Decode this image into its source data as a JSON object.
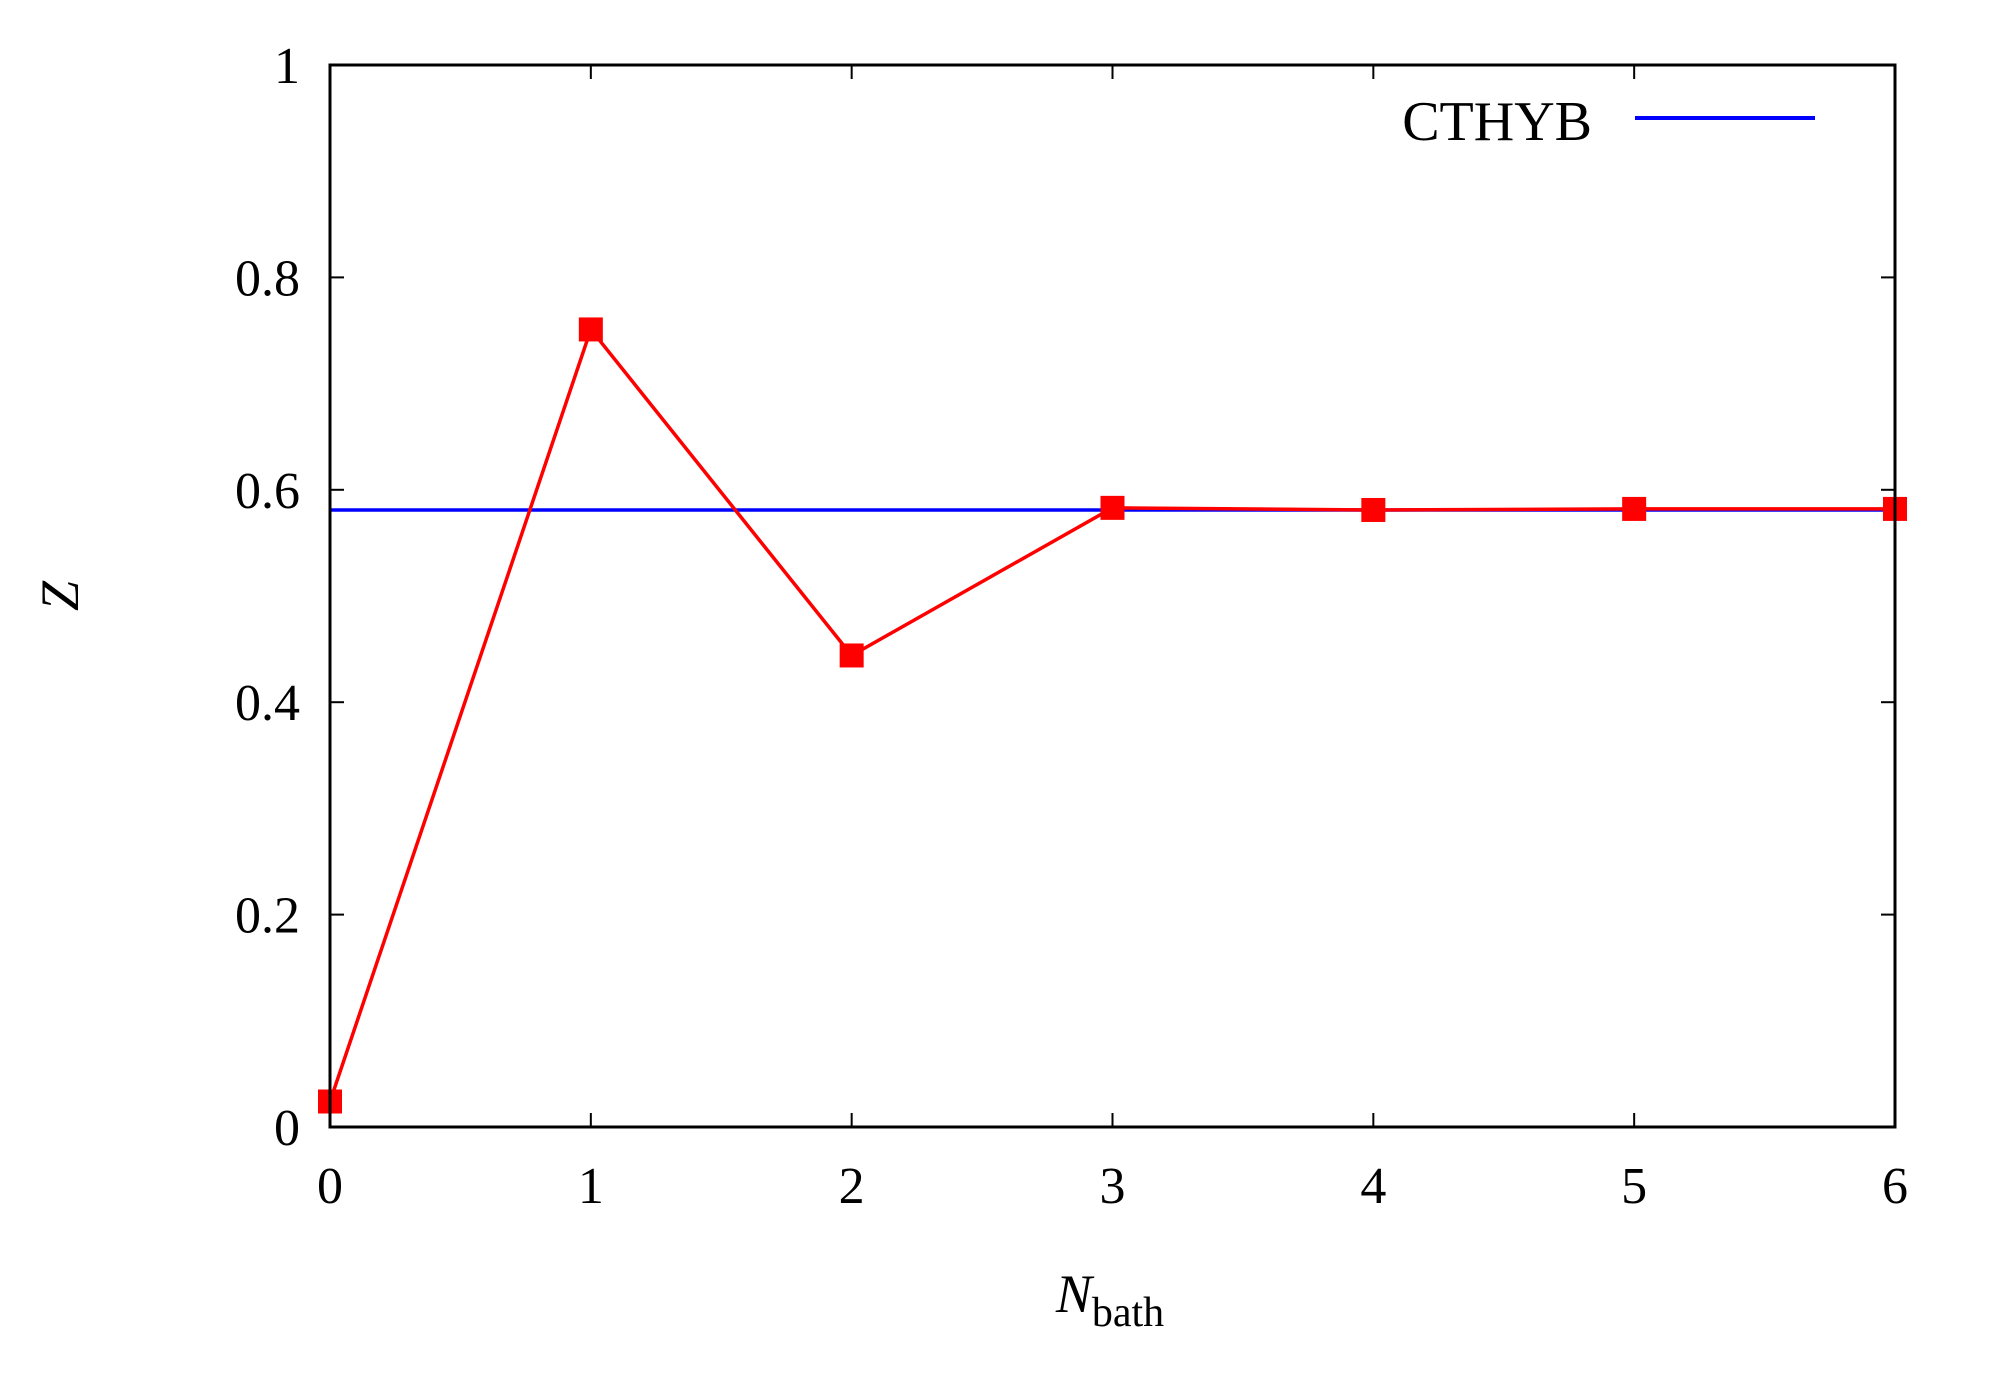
{
  "chart_data": {
    "type": "line",
    "x_ticks": [
      "0",
      "1",
      "2",
      "3",
      "4",
      "5",
      "6"
    ],
    "y_ticks": [
      "0",
      "0.2",
      "0.4",
      "0.6",
      "0.8",
      "1"
    ],
    "xlim": [
      0,
      6
    ],
    "ylim": [
      0,
      1
    ],
    "xlabel": {
      "main": "N",
      "sub": "bath"
    },
    "ylabel": "Z",
    "grid": false,
    "legend_position": "top-right",
    "series": [
      {
        "name": "",
        "color": "#ff0000",
        "marker": "square",
        "x": [
          0,
          1,
          2,
          3,
          4,
          5,
          6
        ],
        "y": [
          0.024,
          0.751,
          0.444,
          0.583,
          0.581,
          0.582,
          0.582
        ]
      },
      {
        "name": "CTHYB",
        "color": "#0000ff",
        "marker": "none",
        "type": "hline",
        "y": 0.581
      }
    ]
  }
}
